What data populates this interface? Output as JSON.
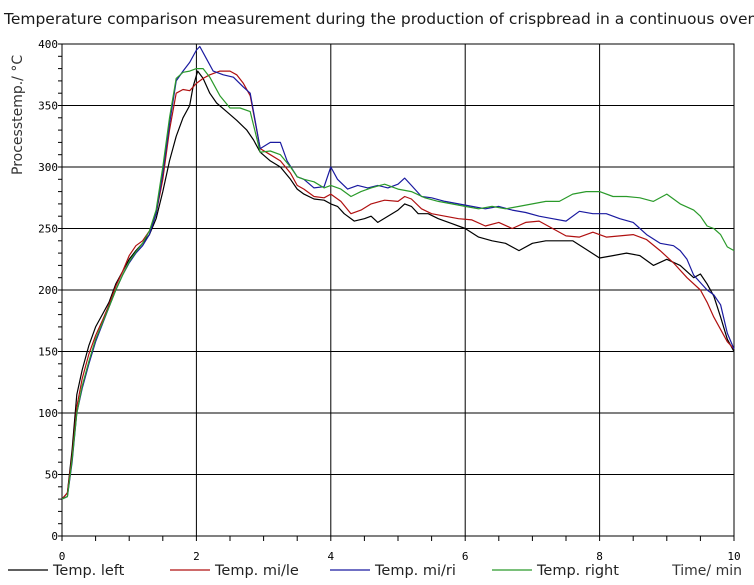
{
  "title": "Temperature comparison measurement during the production of crispbread in a continuous oven",
  "chart_data": {
    "type": "line",
    "title": "Temperature comparison measurement during the production of crispbread in a continuous oven",
    "xlabel": "Time/ min",
    "ylabel": "Processtemp./ °C",
    "xlim": [
      0,
      10
    ],
    "ylim": [
      0,
      400
    ],
    "x_ticks": [
      0,
      2,
      4,
      6,
      8,
      10
    ],
    "y_ticks": [
      0,
      50,
      100,
      150,
      200,
      250,
      300,
      350,
      400
    ],
    "grid": true,
    "legend_position": "bottom",
    "series": [
      {
        "name": "Temp. left",
        "color": "#000000",
        "points": [
          [
            0,
            30
          ],
          [
            0.08,
            35
          ],
          [
            0.15,
            70
          ],
          [
            0.22,
            115
          ],
          [
            0.3,
            135
          ],
          [
            0.4,
            155
          ],
          [
            0.5,
            170
          ],
          [
            0.6,
            180
          ],
          [
            0.7,
            190
          ],
          [
            0.8,
            205
          ],
          [
            0.9,
            215
          ],
          [
            1.0,
            225
          ],
          [
            1.1,
            232
          ],
          [
            1.2,
            238
          ],
          [
            1.3,
            245
          ],
          [
            1.4,
            258
          ],
          [
            1.5,
            280
          ],
          [
            1.6,
            305
          ],
          [
            1.7,
            325
          ],
          [
            1.8,
            340
          ],
          [
            1.9,
            350
          ],
          [
            1.95,
            365
          ],
          [
            2.02,
            378
          ],
          [
            2.1,
            372
          ],
          [
            2.2,
            360
          ],
          [
            2.3,
            352
          ],
          [
            2.45,
            345
          ],
          [
            2.6,
            338
          ],
          [
            2.75,
            330
          ],
          [
            2.85,
            322
          ],
          [
            2.95,
            312
          ],
          [
            3.1,
            305
          ],
          [
            3.25,
            300
          ],
          [
            3.4,
            290
          ],
          [
            3.5,
            282
          ],
          [
            3.6,
            278
          ],
          [
            3.75,
            274
          ],
          [
            3.9,
            273
          ],
          [
            4.0,
            270
          ],
          [
            4.1,
            268
          ],
          [
            4.2,
            262
          ],
          [
            4.35,
            256
          ],
          [
            4.5,
            258
          ],
          [
            4.6,
            260
          ],
          [
            4.7,
            255
          ],
          [
            4.85,
            260
          ],
          [
            5.0,
            265
          ],
          [
            5.1,
            270
          ],
          [
            5.2,
            268
          ],
          [
            5.3,
            262
          ],
          [
            5.45,
            262
          ],
          [
            5.6,
            258
          ],
          [
            5.8,
            254
          ],
          [
            6.0,
            250
          ],
          [
            6.2,
            243
          ],
          [
            6.4,
            240
          ],
          [
            6.6,
            238
          ],
          [
            6.8,
            232
          ],
          [
            7.0,
            238
          ],
          [
            7.2,
            240
          ],
          [
            7.4,
            240
          ],
          [
            7.6,
            240
          ],
          [
            7.8,
            233
          ],
          [
            8.0,
            226
          ],
          [
            8.2,
            228
          ],
          [
            8.4,
            230
          ],
          [
            8.6,
            228
          ],
          [
            8.8,
            220
          ],
          [
            9.0,
            225
          ],
          [
            9.2,
            220
          ],
          [
            9.4,
            210
          ],
          [
            9.5,
            213
          ],
          [
            9.6,
            205
          ],
          [
            9.7,
            195
          ],
          [
            9.8,
            178
          ],
          [
            9.9,
            160
          ],
          [
            10.0,
            150
          ]
        ]
      },
      {
        "name": "Temp. mi/le",
        "color": "#b01010",
        "points": [
          [
            0,
            30
          ],
          [
            0.08,
            35
          ],
          [
            0.15,
            65
          ],
          [
            0.22,
            105
          ],
          [
            0.3,
            128
          ],
          [
            0.4,
            148
          ],
          [
            0.5,
            163
          ],
          [
            0.6,
            175
          ],
          [
            0.7,
            188
          ],
          [
            0.8,
            203
          ],
          [
            0.9,
            215
          ],
          [
            1.0,
            228
          ],
          [
            1.1,
            236
          ],
          [
            1.2,
            240
          ],
          [
            1.3,
            248
          ],
          [
            1.4,
            262
          ],
          [
            1.5,
            290
          ],
          [
            1.6,
            330
          ],
          [
            1.7,
            360
          ],
          [
            1.8,
            363
          ],
          [
            1.9,
            362
          ],
          [
            2.0,
            368
          ],
          [
            2.1,
            372
          ],
          [
            2.2,
            375
          ],
          [
            2.35,
            378
          ],
          [
            2.5,
            378
          ],
          [
            2.6,
            375
          ],
          [
            2.7,
            368
          ],
          [
            2.8,
            358
          ],
          [
            2.95,
            315
          ],
          [
            3.1,
            310
          ],
          [
            3.25,
            305
          ],
          [
            3.4,
            295
          ],
          [
            3.5,
            285
          ],
          [
            3.6,
            282
          ],
          [
            3.75,
            276
          ],
          [
            3.9,
            275
          ],
          [
            4.0,
            278
          ],
          [
            4.15,
            272
          ],
          [
            4.3,
            262
          ],
          [
            4.45,
            265
          ],
          [
            4.6,
            270
          ],
          [
            4.8,
            273
          ],
          [
            5.0,
            272
          ],
          [
            5.1,
            276
          ],
          [
            5.2,
            274
          ],
          [
            5.35,
            266
          ],
          [
            5.5,
            262
          ],
          [
            5.7,
            260
          ],
          [
            5.9,
            258
          ],
          [
            6.1,
            257
          ],
          [
            6.3,
            252
          ],
          [
            6.5,
            255
          ],
          [
            6.7,
            250
          ],
          [
            6.9,
            255
          ],
          [
            7.1,
            256
          ],
          [
            7.3,
            250
          ],
          [
            7.5,
            244
          ],
          [
            7.7,
            243
          ],
          [
            7.9,
            247
          ],
          [
            8.1,
            243
          ],
          [
            8.3,
            244
          ],
          [
            8.5,
            245
          ],
          [
            8.7,
            241
          ],
          [
            8.9,
            232
          ],
          [
            9.1,
            222
          ],
          [
            9.3,
            210
          ],
          [
            9.5,
            200
          ],
          [
            9.6,
            190
          ],
          [
            9.7,
            178
          ],
          [
            9.8,
            168
          ],
          [
            9.9,
            158
          ],
          [
            10.0,
            152
          ]
        ]
      },
      {
        "name": "Temp. mi/ri",
        "color": "#1a1aa0",
        "points": [
          [
            0,
            30
          ],
          [
            0.08,
            32
          ],
          [
            0.15,
            60
          ],
          [
            0.22,
            100
          ],
          [
            0.3,
            120
          ],
          [
            0.4,
            140
          ],
          [
            0.5,
            158
          ],
          [
            0.6,
            172
          ],
          [
            0.7,
            186
          ],
          [
            0.8,
            200
          ],
          [
            0.9,
            212
          ],
          [
            1.0,
            222
          ],
          [
            1.1,
            230
          ],
          [
            1.2,
            236
          ],
          [
            1.3,
            245
          ],
          [
            1.4,
            262
          ],
          [
            1.5,
            295
          ],
          [
            1.6,
            335
          ],
          [
            1.7,
            370
          ],
          [
            1.8,
            378
          ],
          [
            1.9,
            385
          ],
          [
            2.0,
            395
          ],
          [
            2.05,
            398
          ],
          [
            2.15,
            388
          ],
          [
            2.25,
            378
          ],
          [
            2.4,
            375
          ],
          [
            2.55,
            373
          ],
          [
            2.7,
            365
          ],
          [
            2.8,
            360
          ],
          [
            2.95,
            315
          ],
          [
            3.1,
            320
          ],
          [
            3.25,
            320
          ],
          [
            3.35,
            305
          ],
          [
            3.5,
            292
          ],
          [
            3.6,
            290
          ],
          [
            3.75,
            283
          ],
          [
            3.9,
            284
          ],
          [
            4.0,
            300
          ],
          [
            4.1,
            290
          ],
          [
            4.25,
            282
          ],
          [
            4.4,
            285
          ],
          [
            4.55,
            283
          ],
          [
            4.7,
            285
          ],
          [
            4.85,
            283
          ],
          [
            5.0,
            286
          ],
          [
            5.1,
            291
          ],
          [
            5.2,
            285
          ],
          [
            5.35,
            276
          ],
          [
            5.5,
            275
          ],
          [
            5.7,
            272
          ],
          [
            5.9,
            270
          ],
          [
            6.1,
            268
          ],
          [
            6.3,
            266
          ],
          [
            6.5,
            268
          ],
          [
            6.7,
            265
          ],
          [
            6.9,
            263
          ],
          [
            7.1,
            260
          ],
          [
            7.3,
            258
          ],
          [
            7.5,
            256
          ],
          [
            7.7,
            264
          ],
          [
            7.9,
            262
          ],
          [
            8.1,
            262
          ],
          [
            8.3,
            258
          ],
          [
            8.5,
            255
          ],
          [
            8.7,
            245
          ],
          [
            8.9,
            238
          ],
          [
            9.1,
            236
          ],
          [
            9.2,
            232
          ],
          [
            9.3,
            225
          ],
          [
            9.4,
            212
          ],
          [
            9.5,
            206
          ],
          [
            9.6,
            200
          ],
          [
            9.7,
            196
          ],
          [
            9.8,
            188
          ],
          [
            9.9,
            165
          ],
          [
            10.0,
            152
          ]
        ]
      },
      {
        "name": "Temp. right",
        "color": "#2a9a2a",
        "points": [
          [
            0,
            30
          ],
          [
            0.08,
            32
          ],
          [
            0.15,
            62
          ],
          [
            0.22,
            100
          ],
          [
            0.3,
            122
          ],
          [
            0.4,
            142
          ],
          [
            0.5,
            160
          ],
          [
            0.6,
            173
          ],
          [
            0.7,
            186
          ],
          [
            0.8,
            200
          ],
          [
            0.9,
            212
          ],
          [
            1.0,
            223
          ],
          [
            1.1,
            231
          ],
          [
            1.2,
            238
          ],
          [
            1.3,
            248
          ],
          [
            1.4,
            265
          ],
          [
            1.5,
            300
          ],
          [
            1.6,
            340
          ],
          [
            1.7,
            372
          ],
          [
            1.8,
            377
          ],
          [
            1.9,
            378
          ],
          [
            2.0,
            380
          ],
          [
            2.1,
            380
          ],
          [
            2.2,
            373
          ],
          [
            2.35,
            358
          ],
          [
            2.5,
            348
          ],
          [
            2.65,
            348
          ],
          [
            2.8,
            345
          ],
          [
            2.95,
            312
          ],
          [
            3.1,
            313
          ],
          [
            3.25,
            310
          ],
          [
            3.4,
            300
          ],
          [
            3.5,
            292
          ],
          [
            3.6,
            290
          ],
          [
            3.75,
            288
          ],
          [
            3.9,
            283
          ],
          [
            4.0,
            285
          ],
          [
            4.15,
            282
          ],
          [
            4.3,
            276
          ],
          [
            4.45,
            280
          ],
          [
            4.6,
            283
          ],
          [
            4.8,
            286
          ],
          [
            5.0,
            282
          ],
          [
            5.2,
            280
          ],
          [
            5.4,
            275
          ],
          [
            5.6,
            272
          ],
          [
            5.8,
            270
          ],
          [
            6.0,
            268
          ],
          [
            6.2,
            266
          ],
          [
            6.4,
            268
          ],
          [
            6.6,
            266
          ],
          [
            6.8,
            268
          ],
          [
            7.0,
            270
          ],
          [
            7.2,
            272
          ],
          [
            7.4,
            272
          ],
          [
            7.6,
            278
          ],
          [
            7.8,
            280
          ],
          [
            8.0,
            280
          ],
          [
            8.2,
            276
          ],
          [
            8.4,
            276
          ],
          [
            8.6,
            275
          ],
          [
            8.8,
            272
          ],
          [
            9.0,
            278
          ],
          [
            9.2,
            270
          ],
          [
            9.4,
            265
          ],
          [
            9.5,
            260
          ],
          [
            9.6,
            252
          ],
          [
            9.7,
            250
          ],
          [
            9.8,
            245
          ],
          [
            9.9,
            235
          ],
          [
            10.0,
            232
          ]
        ]
      }
    ]
  }
}
